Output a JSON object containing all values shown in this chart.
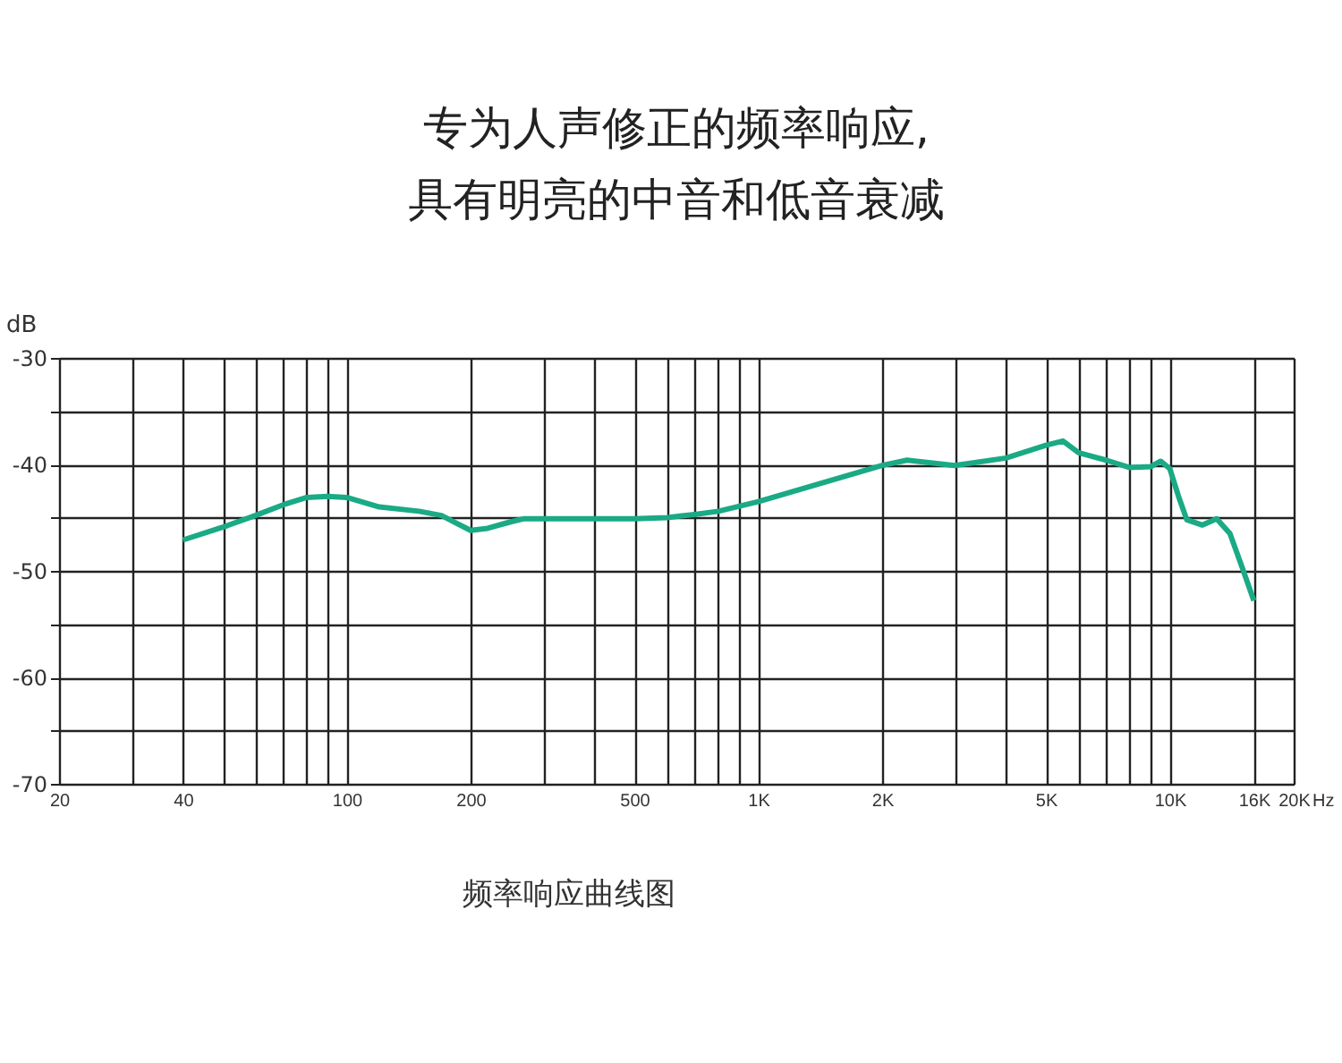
{
  "chart_data": {
    "type": "line",
    "title": "专为人声修正的频率响应,\n具有明亮的中音和低音衰减",
    "ylabel": "dB",
    "annotations": [
      "频率响应曲线图"
    ],
    "x": [
      40,
      50,
      60,
      70,
      80,
      90,
      100,
      120,
      150,
      170,
      200,
      220,
      250,
      270,
      300,
      500,
      600,
      700,
      800,
      1000,
      2000,
      2300,
      3000,
      4000,
      5000,
      5500,
      6000,
      7000,
      8000,
      9000,
      9500,
      10000,
      10500,
      11000,
      12000,
      13000,
      14000,
      15000,
      16000
    ],
    "series": [
      {
        "color": "#1aaa85",
        "values": [
          -47.1,
          -45.9,
          -44.8,
          -43.8,
          -43.1,
          -43.0,
          -43.1,
          -44.0,
          -44.4,
          -44.8,
          -46.2,
          -46.0,
          -45.4,
          -45.1,
          -45.1,
          -45.1,
          -45.0,
          -44.7,
          -44.4,
          -43.5,
          -40.1,
          -39.6,
          -40.1,
          -39.4,
          -38.2,
          -37.8,
          -38.9,
          -39.6,
          -40.3,
          -40.2,
          -39.7,
          -40.4,
          -43.0,
          -45.2,
          -45.7,
          -45.1,
          -46.5,
          -49.7,
          -52.8
        ]
      }
    ],
    "log": "x",
    "xlim": [
      20,
      20000
    ],
    "ylim": [
      -70,
      -30
    ],
    "grid": true,
    "marker": "none",
    "line_style": "solid",
    "legend": false,
    "xticks": [
      20,
      {
        "value": 30,
        "label": null
      },
      40,
      {
        "value": 50,
        "label": null
      },
      {
        "value": 60,
        "label": null
      },
      {
        "value": 70,
        "label": null
      },
      {
        "value": 80,
        "label": null
      },
      {
        "value": 90,
        "label": null
      },
      100,
      200,
      {
        "value": 300,
        "label": null
      },
      {
        "value": 400,
        "label": null
      },
      500,
      {
        "value": 600,
        "label": null
      },
      {
        "value": 700,
        "label": null
      },
      {
        "value": 800,
        "label": null
      },
      {
        "value": 900,
        "label": null
      },
      {
        "value": 1000,
        "label": "1K"
      },
      {
        "value": 2000,
        "label": "2K"
      },
      {
        "value": 3000,
        "label": null
      },
      {
        "value": 4000,
        "label": null
      },
      {
        "value": 5000,
        "label": "5K"
      },
      {
        "value": 6000,
        "label": null
      },
      {
        "value": 7000,
        "label": null
      },
      {
        "value": 8000,
        "label": null
      },
      {
        "value": 9000,
        "label": null
      },
      {
        "value": 10000,
        "label": "10K"
      },
      {
        "value": 16000,
        "label": "16K"
      },
      {
        "value": 20000,
        "label": "20K"
      }
    ],
    "xlabel": "Hz",
    "yticks": [
      -70,
      {
        "value": -65,
        "label": null
      },
      -60,
      {
        "value": -55,
        "label": null
      },
      -50,
      {
        "value": -45,
        "label": null
      },
      -40,
      {
        "value": -35,
        "label": null
      },
      -30
    ]
  }
}
